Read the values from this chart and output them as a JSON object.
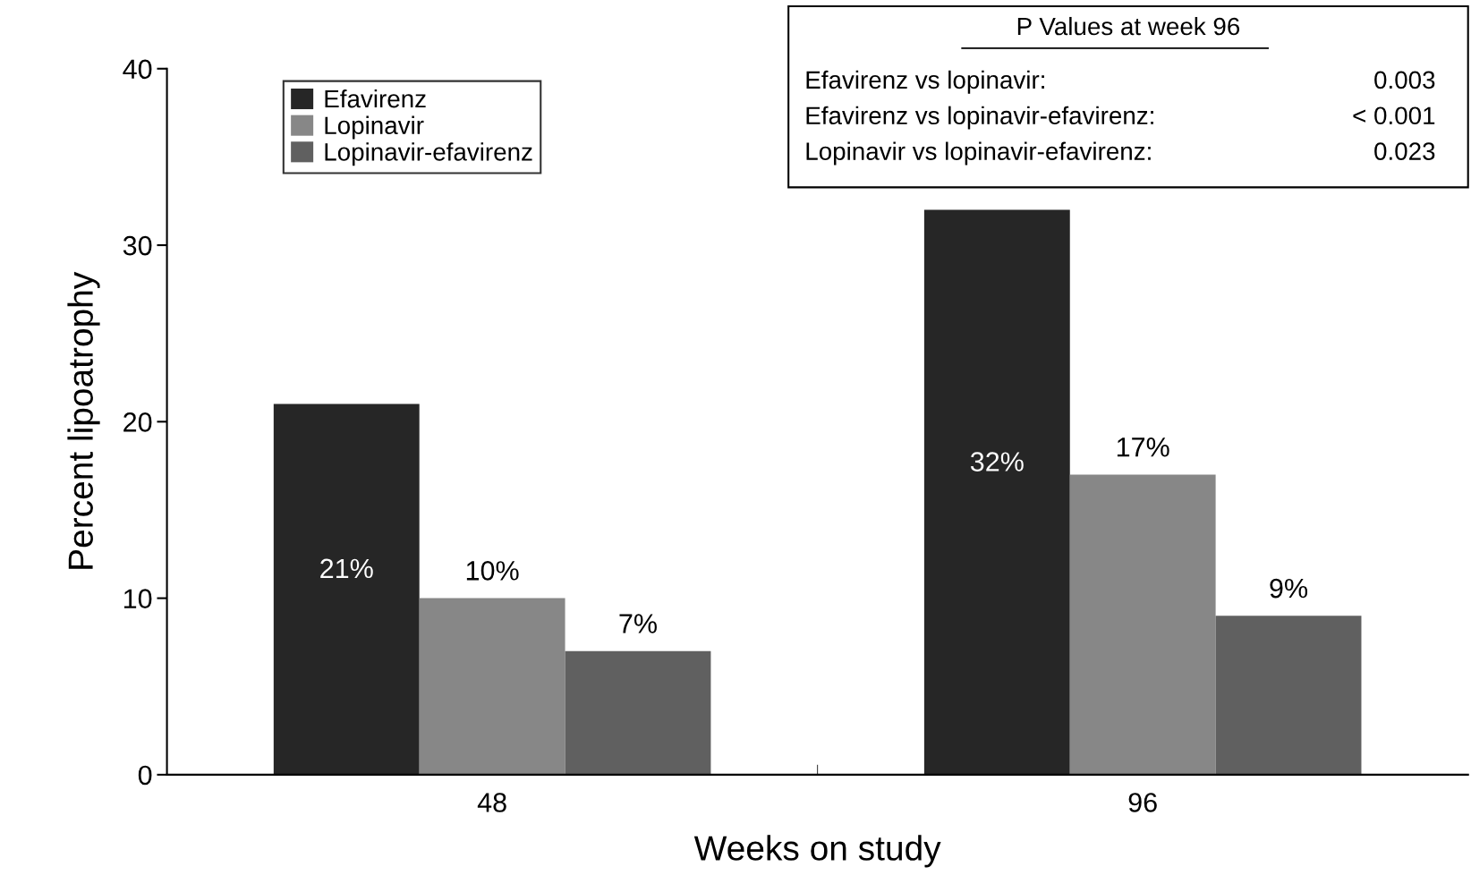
{
  "chart_data": {
    "type": "bar",
    "xlabel": "Weeks on study",
    "ylabel": "Percent lipoatrophy",
    "categories": [
      "48",
      "96"
    ],
    "series": [
      {
        "name": "Efavirenz",
        "color": "#262626",
        "values": [
          21,
          32
        ],
        "value_labels": [
          "21%",
          "32%"
        ]
      },
      {
        "name": "Lopinavir",
        "color": "#878787",
        "values": [
          10,
          17
        ],
        "value_labels": [
          "10%",
          "17%"
        ]
      },
      {
        "name": "Lopinavir-efavirenz",
        "color": "#606060",
        "values": [
          7,
          9
        ],
        "value_labels": [
          "7%",
          "9%"
        ]
      }
    ],
    "ylim": [
      0,
      40
    ],
    "yticks": [
      0,
      10,
      20,
      30,
      40
    ],
    "grid": false,
    "legend": "top left",
    "annotations": [
      "P Values at week 96",
      "Efavirenz vs lopinavir:",
      "0.003",
      "Efavirenz vs lopinavir-efavirenz:",
      "< 0.001",
      "Lopinavir vs lopinavir-efavirenz:",
      "0.023"
    ]
  }
}
